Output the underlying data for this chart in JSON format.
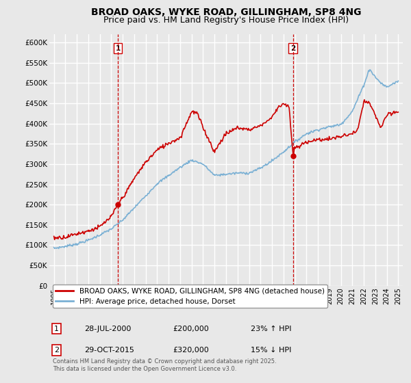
{
  "title": "BROAD OAKS, WYKE ROAD, GILLINGHAM, SP8 4NG",
  "subtitle": "Price paid vs. HM Land Registry's House Price Index (HPI)",
  "ylim": [
    0,
    620000
  ],
  "yticks": [
    0,
    50000,
    100000,
    150000,
    200000,
    250000,
    300000,
    350000,
    400000,
    450000,
    500000,
    550000,
    600000
  ],
  "ytick_labels": [
    "£0",
    "£50K",
    "£100K",
    "£150K",
    "£200K",
    "£250K",
    "£300K",
    "£350K",
    "£400K",
    "£450K",
    "£500K",
    "£550K",
    "£600K"
  ],
  "xlim_left": 1994.6,
  "xlim_right": 2025.4,
  "background_color": "#e8e8e8",
  "grid_color": "#ffffff",
  "red_color": "#cc0000",
  "blue_color": "#7ab0d4",
  "marker1_date": 2000.57,
  "marker1_price": 200000,
  "marker1_label": "1",
  "marker2_date": 2015.83,
  "marker2_price": 320000,
  "marker2_label": "2",
  "legend_entry1": "BROAD OAKS, WYKE ROAD, GILLINGHAM, SP8 4NG (detached house)",
  "legend_entry2": "HPI: Average price, detached house, Dorset",
  "annot1_date": "28-JUL-2000",
  "annot1_price": "£200,000",
  "annot1_hpi": "23% ↑ HPI",
  "annot2_date": "29-OCT-2015",
  "annot2_price": "£320,000",
  "annot2_hpi": "15% ↓ HPI",
  "footnote": "Contains HM Land Registry data © Crown copyright and database right 2025.\nThis data is licensed under the Open Government Licence v3.0.",
  "title_fontsize": 10,
  "subtitle_fontsize": 9,
  "hpi_anchors_x": [
    1995,
    1996,
    1997,
    1998,
    1999,
    2000,
    2001,
    2002,
    2003,
    2004,
    2005,
    2006,
    2007,
    2008,
    2009,
    2010,
    2011,
    2012,
    2013,
    2014,
    2015,
    2016,
    2017,
    2018,
    2019,
    2020,
    2021,
    2022,
    2022.5,
    2023,
    2023.5,
    2024,
    2025
  ],
  "hpi_anchors_y": [
    92000,
    97000,
    103000,
    112000,
    125000,
    140000,
    162000,
    192000,
    222000,
    252000,
    272000,
    292000,
    310000,
    300000,
    272000,
    275000,
    278000,
    278000,
    290000,
    308000,
    330000,
    355000,
    375000,
    385000,
    392000,
    398000,
    430000,
    495000,
    535000,
    515000,
    500000,
    490000,
    505000
  ],
  "red_anchors_x": [
    1995,
    1996,
    1997,
    1998,
    1999,
    2000,
    2000.57,
    2001,
    2001.5,
    2002,
    2003,
    2004,
    2005,
    2006,
    2007,
    2007.5,
    2008,
    2009,
    2009.5,
    2010,
    2011,
    2012,
    2013,
    2014,
    2014.5,
    2015,
    2015.5,
    2015.83,
    2016,
    2016.5,
    2017,
    2017.5,
    2018,
    2019,
    2020,
    2021,
    2021.5,
    2022,
    2022.5,
    2023,
    2023.5,
    2024,
    2025
  ],
  "red_anchors_y": [
    118000,
    120000,
    128000,
    135000,
    145000,
    170000,
    200000,
    218000,
    240000,
    265000,
    305000,
    335000,
    352000,
    365000,
    430000,
    425000,
    390000,
    330000,
    355000,
    375000,
    390000,
    385000,
    395000,
    415000,
    440000,
    450000,
    440000,
    320000,
    340000,
    345000,
    355000,
    358000,
    360000,
    362000,
    368000,
    375000,
    385000,
    455000,
    450000,
    420000,
    390000,
    420000,
    430000
  ]
}
